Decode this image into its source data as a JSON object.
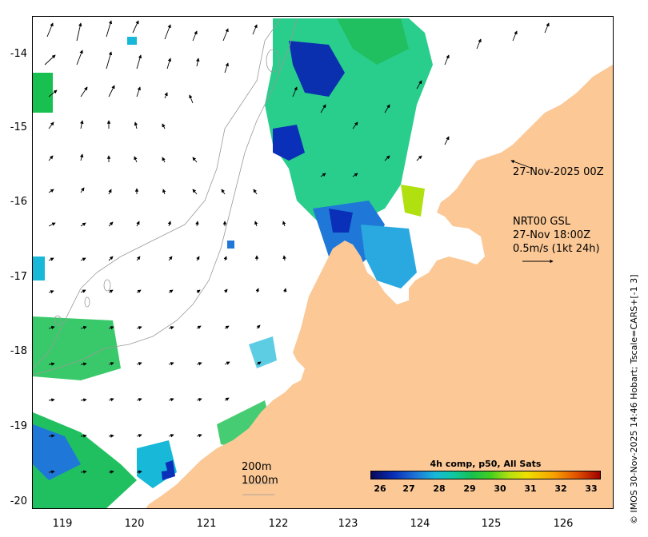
{
  "map": {
    "lon_ticks": [
      "119",
      "120",
      "121",
      "122",
      "123",
      "124",
      "125",
      "126"
    ],
    "lat_ticks": [
      "-14",
      "-15",
      "-16",
      "-17",
      "-18",
      "-19",
      "-20"
    ],
    "lon_range": [
      118.6,
      126.8
    ],
    "lat_range": [
      -20.1,
      -13.5
    ],
    "land_color": "#fbc896",
    "sea_color": "#ffffff"
  },
  "annotations": {
    "time_label": "27-Nov-2025 00Z",
    "product_line1": "NRT00 GSL",
    "product_line2": "27-Nov 18:00Z",
    "vector_scale": "0.5m/s (1kt 24h)",
    "contour_200": "200m",
    "contour_1000": "1000m"
  },
  "colorbar": {
    "title": "4h comp, p50, All Sats",
    "ticks": [
      "26",
      "27",
      "28",
      "29",
      "30",
      "31",
      "32",
      "33"
    ],
    "colors": [
      "#08085a",
      "#1f78d8",
      "#18b8d8",
      "#18c050",
      "#40d020",
      "#f0e000",
      "#f8a000",
      "#a00000"
    ]
  },
  "credit": "© IMOS 30-Nov-2025 14:46 Hobart; Tscale=CARS+[-1 3]"
}
